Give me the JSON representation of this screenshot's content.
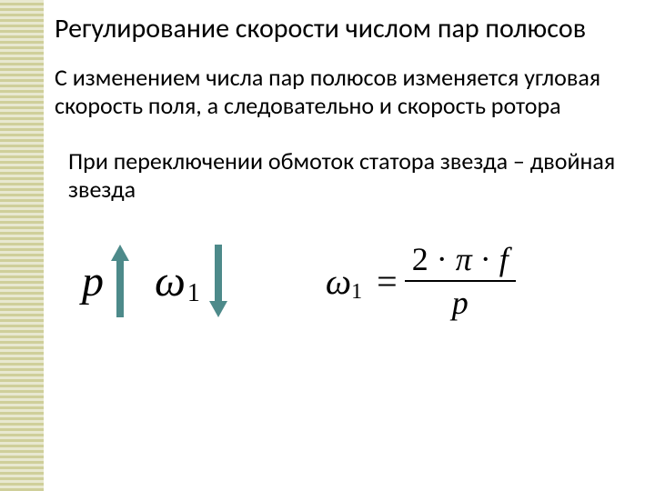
{
  "title": "Регулирование скорости числом пар полюсов",
  "para1": "С изменением числа пар полюсов изменяется угловая скорость поля, а следовательно и скорость ротора",
  "para2": "При переключении обмоток статора звезда – двойная звезда",
  "symbols": {
    "p": "p",
    "omega": "ω",
    "sub1": "1"
  },
  "formula": {
    "lhs_omega": "ω",
    "lhs_sub": "1",
    "eq": "=",
    "num_prefix": "2 · ",
    "num_pi": "π",
    "num_mid": " · ",
    "num_f": "f",
    "den": "p"
  },
  "style": {
    "stripe_color1": "#cfcf9a",
    "stripe_color2": "#e8e8d0",
    "arrow_color": "#4d8a8a",
    "text_color": "#000000",
    "bg_color": "#ffffff",
    "title_fontsize": 30,
    "body_fontsize": 26,
    "math_fontsize": 48,
    "formula_fontsize": 40
  }
}
